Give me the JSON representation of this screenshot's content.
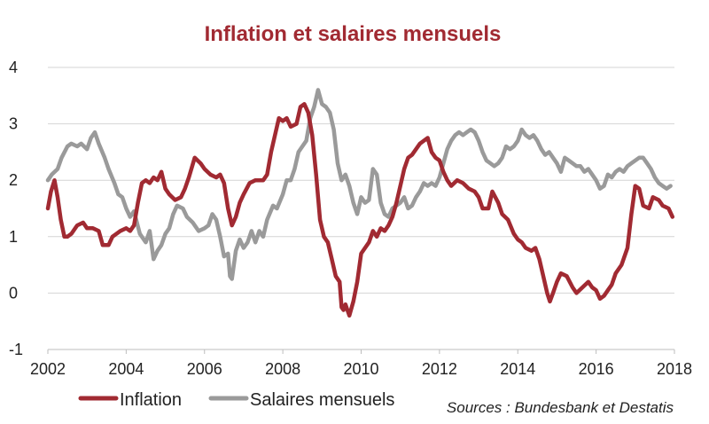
{
  "chart_data": {
    "type": "line",
    "title": "Inflation et salaires mensuels",
    "xlabel": "",
    "ylabel": "",
    "xlim": [
      2002,
      2018
    ],
    "ylim": [
      -1,
      4
    ],
    "x_ticks": [
      2002,
      2004,
      2006,
      2008,
      2010,
      2012,
      2014,
      2016,
      2018
    ],
    "x_tick_labels": [
      "2002",
      "2004",
      "2006",
      "2008",
      "2010",
      "2012",
      "2014",
      "2016",
      "2018"
    ],
    "y_ticks": [
      4,
      3,
      2,
      1,
      0,
      -1
    ],
    "y_tick_labels": [
      "4",
      "3",
      "2",
      "1",
      "0",
      "-1"
    ],
    "grid": true,
    "legend_position": "bottom-left",
    "series": [
      {
        "name": "Inflation",
        "color": "#a12a32",
        "points": [
          [
            2002.0,
            1.5
          ],
          [
            2002.08,
            1.8
          ],
          [
            2002.17,
            2.0
          ],
          [
            2002.25,
            1.7
          ],
          [
            2002.33,
            1.3
          ],
          [
            2002.42,
            1.0
          ],
          [
            2002.5,
            1.0
          ],
          [
            2002.6,
            1.05
          ],
          [
            2002.75,
            1.2
          ],
          [
            2002.9,
            1.25
          ],
          [
            2003.0,
            1.15
          ],
          [
            2003.15,
            1.15
          ],
          [
            2003.3,
            1.1
          ],
          [
            2003.4,
            0.85
          ],
          [
            2003.55,
            0.85
          ],
          [
            2003.65,
            1.0
          ],
          [
            2003.85,
            1.1
          ],
          [
            2004.0,
            1.15
          ],
          [
            2004.1,
            1.1
          ],
          [
            2004.2,
            1.2
          ],
          [
            2004.3,
            1.6
          ],
          [
            2004.4,
            1.95
          ],
          [
            2004.5,
            2.0
          ],
          [
            2004.6,
            1.95
          ],
          [
            2004.7,
            2.05
          ],
          [
            2004.8,
            2.0
          ],
          [
            2004.9,
            2.15
          ],
          [
            2005.0,
            1.85
          ],
          [
            2005.1,
            1.75
          ],
          [
            2005.25,
            1.65
          ],
          [
            2005.4,
            1.7
          ],
          [
            2005.5,
            1.85
          ],
          [
            2005.6,
            2.05
          ],
          [
            2005.75,
            2.4
          ],
          [
            2005.9,
            2.3
          ],
          [
            2006.0,
            2.2
          ],
          [
            2006.15,
            2.1
          ],
          [
            2006.3,
            2.05
          ],
          [
            2006.4,
            2.1
          ],
          [
            2006.5,
            1.95
          ],
          [
            2006.6,
            1.5
          ],
          [
            2006.7,
            1.2
          ],
          [
            2006.8,
            1.35
          ],
          [
            2006.9,
            1.6
          ],
          [
            2007.0,
            1.75
          ],
          [
            2007.15,
            1.95
          ],
          [
            2007.3,
            2.0
          ],
          [
            2007.5,
            2.0
          ],
          [
            2007.6,
            2.1
          ],
          [
            2007.7,
            2.5
          ],
          [
            2007.8,
            2.8
          ],
          [
            2007.9,
            3.1
          ],
          [
            2008.0,
            3.05
          ],
          [
            2008.1,
            3.1
          ],
          [
            2008.2,
            2.95
          ],
          [
            2008.35,
            3.0
          ],
          [
            2008.45,
            3.3
          ],
          [
            2008.55,
            3.35
          ],
          [
            2008.65,
            3.2
          ],
          [
            2008.75,
            2.8
          ],
          [
            2008.85,
            2.1
          ],
          [
            2008.95,
            1.3
          ],
          [
            2009.05,
            1.0
          ],
          [
            2009.15,
            0.9
          ],
          [
            2009.25,
            0.6
          ],
          [
            2009.35,
            0.3
          ],
          [
            2009.45,
            0.2
          ],
          [
            2009.5,
            -0.25
          ],
          [
            2009.55,
            -0.3
          ],
          [
            2009.6,
            -0.2
          ],
          [
            2009.7,
            -0.4
          ],
          [
            2009.8,
            -0.15
          ],
          [
            2009.9,
            0.2
          ],
          [
            2010.0,
            0.7
          ],
          [
            2010.1,
            0.8
          ],
          [
            2010.2,
            0.9
          ],
          [
            2010.3,
            1.1
          ],
          [
            2010.4,
            1.0
          ],
          [
            2010.5,
            1.15
          ],
          [
            2010.6,
            1.1
          ],
          [
            2010.7,
            1.2
          ],
          [
            2010.8,
            1.35
          ],
          [
            2010.9,
            1.6
          ],
          [
            2011.0,
            1.9
          ],
          [
            2011.1,
            2.2
          ],
          [
            2011.2,
            2.4
          ],
          [
            2011.3,
            2.45
          ],
          [
            2011.4,
            2.55
          ],
          [
            2011.5,
            2.65
          ],
          [
            2011.6,
            2.7
          ],
          [
            2011.7,
            2.75
          ],
          [
            2011.8,
            2.5
          ],
          [
            2011.9,
            2.4
          ],
          [
            2012.0,
            2.35
          ],
          [
            2012.1,
            2.15
          ],
          [
            2012.2,
            2.0
          ],
          [
            2012.3,
            1.9
          ],
          [
            2012.45,
            2.0
          ],
          [
            2012.6,
            1.95
          ],
          [
            2012.75,
            1.85
          ],
          [
            2012.9,
            1.8
          ],
          [
            2013.0,
            1.7
          ],
          [
            2013.1,
            1.5
          ],
          [
            2013.25,
            1.5
          ],
          [
            2013.35,
            1.8
          ],
          [
            2013.5,
            1.6
          ],
          [
            2013.6,
            1.4
          ],
          [
            2013.75,
            1.3
          ],
          [
            2013.9,
            1.05
          ],
          [
            2014.0,
            0.95
          ],
          [
            2014.1,
            0.9
          ],
          [
            2014.2,
            0.8
          ],
          [
            2014.35,
            0.75
          ],
          [
            2014.45,
            0.8
          ],
          [
            2014.55,
            0.6
          ],
          [
            2014.65,
            0.3
          ],
          [
            2014.75,
            0.0
          ],
          [
            2014.82,
            -0.15
          ],
          [
            2014.9,
            0.0
          ],
          [
            2015.0,
            0.2
          ],
          [
            2015.1,
            0.35
          ],
          [
            2015.25,
            0.3
          ],
          [
            2015.4,
            0.1
          ],
          [
            2015.5,
            0.0
          ],
          [
            2015.65,
            0.1
          ],
          [
            2015.8,
            0.2
          ],
          [
            2015.9,
            0.1
          ],
          [
            2016.0,
            0.05
          ],
          [
            2016.1,
            -0.1
          ],
          [
            2016.2,
            -0.05
          ],
          [
            2016.3,
            0.05
          ],
          [
            2016.4,
            0.15
          ],
          [
            2016.5,
            0.35
          ],
          [
            2016.65,
            0.5
          ],
          [
            2016.8,
            0.8
          ],
          [
            2016.9,
            1.4
          ],
          [
            2017.0,
            1.9
          ],
          [
            2017.1,
            1.85
          ],
          [
            2017.2,
            1.55
          ],
          [
            2017.35,
            1.5
          ],
          [
            2017.45,
            1.7
          ],
          [
            2017.6,
            1.65
          ],
          [
            2017.7,
            1.55
          ],
          [
            2017.85,
            1.5
          ],
          [
            2017.95,
            1.35
          ]
        ]
      },
      {
        "name": "Salaires mensuels",
        "color": "#9a9a9a",
        "points": [
          [
            2002.0,
            2.0
          ],
          [
            2002.1,
            2.1
          ],
          [
            2002.25,
            2.2
          ],
          [
            2002.35,
            2.4
          ],
          [
            2002.5,
            2.6
          ],
          [
            2002.6,
            2.65
          ],
          [
            2002.75,
            2.6
          ],
          [
            2002.85,
            2.65
          ],
          [
            2003.0,
            2.55
          ],
          [
            2003.1,
            2.75
          ],
          [
            2003.2,
            2.85
          ],
          [
            2003.3,
            2.65
          ],
          [
            2003.45,
            2.4
          ],
          [
            2003.55,
            2.2
          ],
          [
            2003.7,
            1.95
          ],
          [
            2003.8,
            1.75
          ],
          [
            2003.9,
            1.7
          ],
          [
            2004.0,
            1.5
          ],
          [
            2004.1,
            1.35
          ],
          [
            2004.2,
            1.45
          ],
          [
            2004.35,
            1.05
          ],
          [
            2004.5,
            0.9
          ],
          [
            2004.6,
            1.1
          ],
          [
            2004.7,
            0.6
          ],
          [
            2004.8,
            0.75
          ],
          [
            2004.9,
            0.85
          ],
          [
            2005.0,
            1.05
          ],
          [
            2005.1,
            1.15
          ],
          [
            2005.2,
            1.4
          ],
          [
            2005.3,
            1.55
          ],
          [
            2005.45,
            1.5
          ],
          [
            2005.55,
            1.35
          ],
          [
            2005.7,
            1.25
          ],
          [
            2005.85,
            1.1
          ],
          [
            2006.0,
            1.15
          ],
          [
            2006.1,
            1.2
          ],
          [
            2006.2,
            1.4
          ],
          [
            2006.3,
            1.3
          ],
          [
            2006.4,
            1.0
          ],
          [
            2006.5,
            0.65
          ],
          [
            2006.6,
            0.7
          ],
          [
            2006.65,
            0.3
          ],
          [
            2006.7,
            0.25
          ],
          [
            2006.8,
            0.75
          ],
          [
            2006.9,
            0.95
          ],
          [
            2007.0,
            0.8
          ],
          [
            2007.1,
            0.9
          ],
          [
            2007.2,
            1.1
          ],
          [
            2007.3,
            0.9
          ],
          [
            2007.4,
            1.1
          ],
          [
            2007.5,
            1.0
          ],
          [
            2007.6,
            1.3
          ],
          [
            2007.75,
            1.55
          ],
          [
            2007.85,
            1.5
          ],
          [
            2008.0,
            1.75
          ],
          [
            2008.1,
            2.0
          ],
          [
            2008.2,
            2.0
          ],
          [
            2008.3,
            2.2
          ],
          [
            2008.4,
            2.5
          ],
          [
            2008.5,
            2.6
          ],
          [
            2008.6,
            2.7
          ],
          [
            2008.7,
            3.1
          ],
          [
            2008.8,
            3.3
          ],
          [
            2008.9,
            3.6
          ],
          [
            2009.0,
            3.35
          ],
          [
            2009.1,
            3.3
          ],
          [
            2009.2,
            3.2
          ],
          [
            2009.3,
            2.9
          ],
          [
            2009.4,
            2.3
          ],
          [
            2009.5,
            2.0
          ],
          [
            2009.6,
            2.1
          ],
          [
            2009.7,
            1.9
          ],
          [
            2009.8,
            1.6
          ],
          [
            2009.9,
            1.4
          ],
          [
            2010.0,
            1.7
          ],
          [
            2010.1,
            1.6
          ],
          [
            2010.2,
            1.65
          ],
          [
            2010.3,
            2.2
          ],
          [
            2010.4,
            2.1
          ],
          [
            2010.5,
            1.6
          ],
          [
            2010.6,
            1.4
          ],
          [
            2010.7,
            1.35
          ],
          [
            2010.8,
            1.5
          ],
          [
            2010.9,
            1.55
          ],
          [
            2011.0,
            1.6
          ],
          [
            2011.1,
            1.7
          ],
          [
            2011.2,
            1.5
          ],
          [
            2011.3,
            1.55
          ],
          [
            2011.4,
            1.7
          ],
          [
            2011.5,
            1.8
          ],
          [
            2011.6,
            1.95
          ],
          [
            2011.7,
            1.9
          ],
          [
            2011.8,
            1.95
          ],
          [
            2011.9,
            1.9
          ],
          [
            2012.0,
            2.05
          ],
          [
            2012.1,
            2.3
          ],
          [
            2012.2,
            2.55
          ],
          [
            2012.3,
            2.7
          ],
          [
            2012.4,
            2.8
          ],
          [
            2012.5,
            2.85
          ],
          [
            2012.6,
            2.8
          ],
          [
            2012.7,
            2.85
          ],
          [
            2012.8,
            2.9
          ],
          [
            2012.9,
            2.85
          ],
          [
            2013.0,
            2.7
          ],
          [
            2013.1,
            2.5
          ],
          [
            2013.2,
            2.35
          ],
          [
            2013.3,
            2.3
          ],
          [
            2013.4,
            2.25
          ],
          [
            2013.5,
            2.3
          ],
          [
            2013.6,
            2.4
          ],
          [
            2013.7,
            2.6
          ],
          [
            2013.8,
            2.55
          ],
          [
            2013.9,
            2.6
          ],
          [
            2014.0,
            2.7
          ],
          [
            2014.1,
            2.9
          ],
          [
            2014.2,
            2.8
          ],
          [
            2014.3,
            2.75
          ],
          [
            2014.4,
            2.8
          ],
          [
            2014.5,
            2.7
          ],
          [
            2014.6,
            2.55
          ],
          [
            2014.7,
            2.45
          ],
          [
            2014.8,
            2.5
          ],
          [
            2014.9,
            2.4
          ],
          [
            2015.0,
            2.3
          ],
          [
            2015.1,
            2.15
          ],
          [
            2015.2,
            2.4
          ],
          [
            2015.3,
            2.35
          ],
          [
            2015.4,
            2.3
          ],
          [
            2015.5,
            2.25
          ],
          [
            2015.6,
            2.25
          ],
          [
            2015.7,
            2.15
          ],
          [
            2015.8,
            2.2
          ],
          [
            2015.9,
            2.1
          ],
          [
            2016.0,
            2.0
          ],
          [
            2016.1,
            1.85
          ],
          [
            2016.2,
            1.9
          ],
          [
            2016.3,
            2.1
          ],
          [
            2016.4,
            2.05
          ],
          [
            2016.5,
            2.15
          ],
          [
            2016.6,
            2.2
          ],
          [
            2016.7,
            2.15
          ],
          [
            2016.8,
            2.25
          ],
          [
            2016.9,
            2.3
          ],
          [
            2017.0,
            2.35
          ],
          [
            2017.1,
            2.4
          ],
          [
            2017.2,
            2.4
          ],
          [
            2017.3,
            2.3
          ],
          [
            2017.4,
            2.2
          ],
          [
            2017.5,
            2.05
          ],
          [
            2017.6,
            1.95
          ],
          [
            2017.7,
            1.9
          ],
          [
            2017.8,
            1.85
          ],
          [
            2017.9,
            1.9
          ]
        ]
      }
    ],
    "annotations": [
      "Sources : Bundesbank et Destatis"
    ]
  }
}
